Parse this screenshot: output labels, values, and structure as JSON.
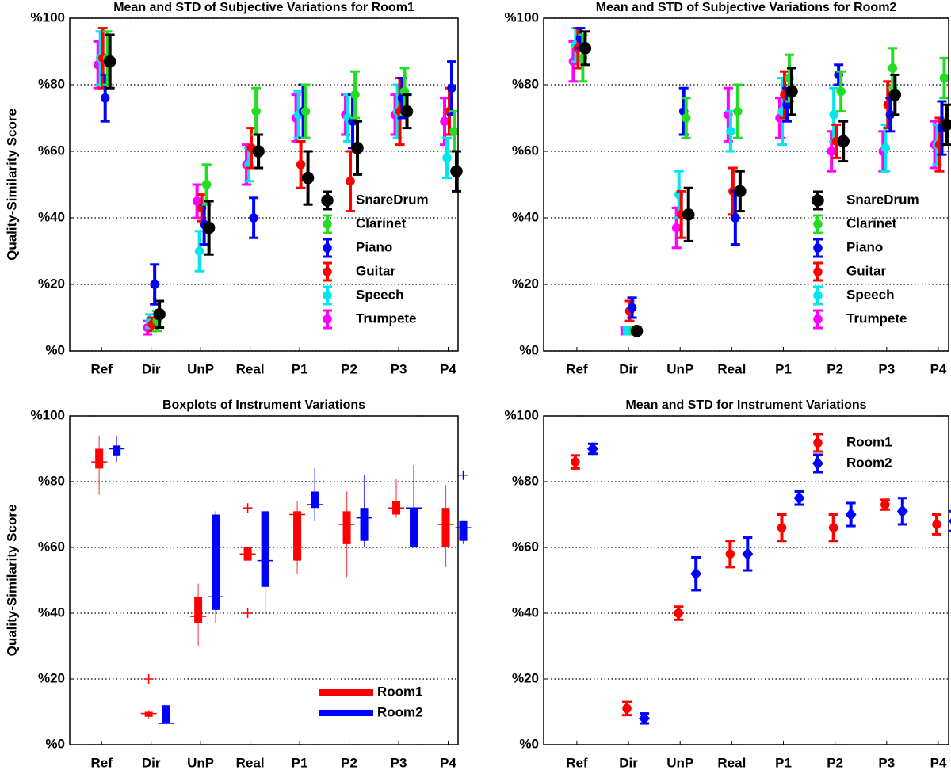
{
  "chart_data": [
    {
      "type": "errorbar",
      "title": "Mean and STD of Subjective Variations for Room1",
      "ylabel": "Quality-Similarity Score",
      "categories": [
        "Ref",
        "Dir",
        "UnP",
        "Real",
        "P1",
        "P2",
        "P3",
        "P4"
      ],
      "ylim": [
        0,
        100
      ],
      "yticks": [
        {
          "value": 0,
          "label": "%0"
        },
        {
          "value": 20,
          "label": "%20"
        },
        {
          "value": 40,
          "label": "%40"
        },
        {
          "value": 60,
          "label": "%60"
        },
        {
          "value": 80,
          "label": "%80"
        },
        {
          "value": 100,
          "label": "%100"
        }
      ],
      "grid": true,
      "legend": "lower right",
      "series": [
        {
          "name": "SnareDrum",
          "color": "#000000",
          "marker": "circle",
          "values": [
            87,
            11,
            37,
            60,
            52,
            61,
            72,
            54
          ],
          "errors": [
            8,
            4,
            8,
            5,
            8,
            8,
            5,
            6
          ]
        },
        {
          "name": "Clarinet",
          "color": "#22dd22",
          "marker": "circle",
          "values": [
            88,
            9,
            50,
            72,
            72,
            77,
            78,
            66
          ],
          "errors": [
            8,
            3,
            6,
            7,
            8,
            7,
            7,
            6
          ]
        },
        {
          "name": "Piano",
          "color": "#0000ff",
          "marker": "circle",
          "values": [
            76,
            20,
            38,
            40,
            72,
            69,
            76,
            79
          ],
          "errors": [
            7,
            6,
            6,
            6,
            8,
            8,
            6,
            8
          ]
        },
        {
          "name": "Guitar",
          "color": "#ff0000",
          "marker": "circle",
          "values": [
            88,
            8,
            43,
            61,
            56,
            51,
            72,
            72
          ],
          "errors": [
            9,
            2,
            4,
            6,
            7,
            9,
            10,
            7
          ]
        },
        {
          "name": "Speech",
          "color": "#00e5ee",
          "marker": "circle",
          "values": [
            88,
            9,
            30,
            56,
            71,
            70,
            72,
            58
          ],
          "errors": [
            8,
            2,
            6,
            5,
            7,
            7,
            8,
            6
          ]
        },
        {
          "name": "Trumpete",
          "color": "#ff00ff",
          "marker": "circle",
          "values": [
            86,
            7,
            45,
            56,
            70,
            71,
            71,
            69
          ],
          "errors": [
            7,
            2,
            5,
            6,
            7,
            6,
            6,
            7
          ]
        }
      ]
    },
    {
      "type": "errorbar",
      "title": "Mean and STD of Subjective Variations for Room2",
      "categories": [
        "Ref",
        "Dir",
        "UnP",
        "Real",
        "P1",
        "P2",
        "P3",
        "P4"
      ],
      "ylim": [
        0,
        100
      ],
      "yticks": [
        {
          "value": 0,
          "label": "%0"
        },
        {
          "value": 20,
          "label": "%20"
        },
        {
          "value": 40,
          "label": "%40"
        },
        {
          "value": 60,
          "label": "%60"
        },
        {
          "value": 80,
          "label": "%80"
        },
        {
          "value": 100,
          "label": "%100"
        }
      ],
      "grid": true,
      "legend": "lower right",
      "series": [
        {
          "name": "SnareDrum",
          "color": "#000000",
          "marker": "circle",
          "values": [
            91,
            6,
            41,
            48,
            78,
            63,
            77,
            68
          ],
          "errors": [
            5,
            1,
            8,
            6,
            7,
            6,
            6,
            6
          ]
        },
        {
          "name": "Clarinet",
          "color": "#22dd22",
          "marker": "circle",
          "values": [
            88,
            6,
            70,
            72,
            82,
            78,
            85,
            82
          ],
          "errors": [
            7,
            1,
            6,
            8,
            7,
            6,
            6,
            6
          ]
        },
        {
          "name": "Piano",
          "color": "#0000ff",
          "marker": "circle",
          "values": [
            94,
            13,
            72,
            40,
            74,
            83,
            71,
            67
          ],
          "errors": [
            3,
            3,
            7,
            8,
            5,
            3,
            5,
            8
          ]
        },
        {
          "name": "Guitar",
          "color": "#ff0000",
          "marker": "circle",
          "values": [
            91,
            12,
            41,
            48,
            77,
            63,
            74,
            62
          ],
          "errors": [
            6,
            3,
            7,
            7,
            7,
            5,
            7,
            8
          ]
        },
        {
          "name": "Speech",
          "color": "#00e5ee",
          "marker": "circle",
          "values": [
            92,
            6,
            47,
            66,
            72,
            71,
            61,
            62
          ],
          "errors": [
            5,
            1,
            7,
            6,
            10,
            8,
            7,
            6
          ]
        },
        {
          "name": "Trumpete",
          "color": "#ff00ff",
          "marker": "circle",
          "values": [
            87,
            6,
            37,
            71,
            70,
            60,
            60,
            62
          ],
          "errors": [
            6,
            1,
            6,
            8,
            6,
            6,
            6,
            7
          ]
        }
      ]
    },
    {
      "type": "box",
      "title": "Boxplots of Instrument Variations",
      "ylabel": "Quality-Similarity Score",
      "categories": [
        "Ref",
        "Dir",
        "UnP",
        "Real",
        "P1",
        "P2",
        "P3",
        "P4"
      ],
      "ylim": [
        0,
        100
      ],
      "yticks": [
        {
          "value": 0,
          "label": "%0"
        },
        {
          "value": 20,
          "label": "%20"
        },
        {
          "value": 40,
          "label": "%40"
        },
        {
          "value": 60,
          "label": "%60"
        },
        {
          "value": 80,
          "label": "%80"
        },
        {
          "value": 100,
          "label": "%100"
        }
      ],
      "grid": true,
      "legend": "lower right",
      "series": [
        {
          "name": "Room1",
          "color": "#ff0000",
          "whislo": [
            76,
            8,
            30,
            56,
            52,
            51,
            69,
            54
          ],
          "q1": [
            84,
            8.5,
            37,
            56,
            56,
            61,
            70,
            60
          ],
          "med": [
            86,
            9.5,
            39,
            58,
            70,
            67,
            72,
            67
          ],
          "q3": [
            90,
            10,
            45,
            60,
            71,
            71,
            74,
            72
          ],
          "whishi": [
            94,
            10.5,
            49,
            60,
            74,
            77,
            81,
            79
          ],
          "fliers": [
            [],
            [
              20
            ],
            [],
            [
              72,
              40
            ],
            [],
            [],
            [],
            []
          ]
        },
        {
          "name": "Room2",
          "color": "#0000ff",
          "whislo": [
            86,
            6,
            37,
            40,
            68,
            60,
            60,
            61
          ],
          "q1": [
            88,
            6.5,
            41,
            48,
            72,
            62,
            60,
            62
          ],
          "med": [
            90,
            6.5,
            45,
            56,
            73,
            69,
            72,
            66
          ],
          "q3": [
            91,
            12,
            70,
            71,
            77,
            72,
            72,
            68
          ],
          "whishi": [
            94,
            12,
            71,
            71,
            84,
            82,
            85,
            68
          ],
          "fliers": [
            [],
            [],
            [],
            [],
            [],
            [],
            [],
            [
              82
            ]
          ]
        }
      ]
    },
    {
      "type": "errorbar",
      "title": "Mean and STD for Instrument Variations",
      "categories": [
        "Ref",
        "Dir",
        "UnP",
        "Real",
        "P1",
        "P2",
        "P3",
        "P4"
      ],
      "ylim": [
        0,
        100
      ],
      "yticks": [
        {
          "value": 0,
          "label": "%0"
        },
        {
          "value": 20,
          "label": "%20"
        },
        {
          "value": 40,
          "label": "%40"
        },
        {
          "value": 60,
          "label": "%60"
        },
        {
          "value": 80,
          "label": "%80"
        },
        {
          "value": 100,
          "label": "%100"
        }
      ],
      "grid": true,
      "legend": "upper right",
      "series": [
        {
          "name": "Room1",
          "color": "#ff0000",
          "marker": "circle",
          "values": [
            86,
            11,
            40,
            58,
            66,
            66,
            73,
            67
          ],
          "errors": [
            2,
            2,
            2,
            4,
            4,
            4,
            1.5,
            3
          ]
        },
        {
          "name": "Room2",
          "color": "#0000ff",
          "marker": "diamond",
          "values": [
            90,
            8,
            52,
            58,
            75,
            70,
            71,
            68
          ],
          "errors": [
            1.5,
            1.5,
            5,
            5,
            2,
            3.5,
            4,
            3
          ]
        }
      ]
    }
  ]
}
